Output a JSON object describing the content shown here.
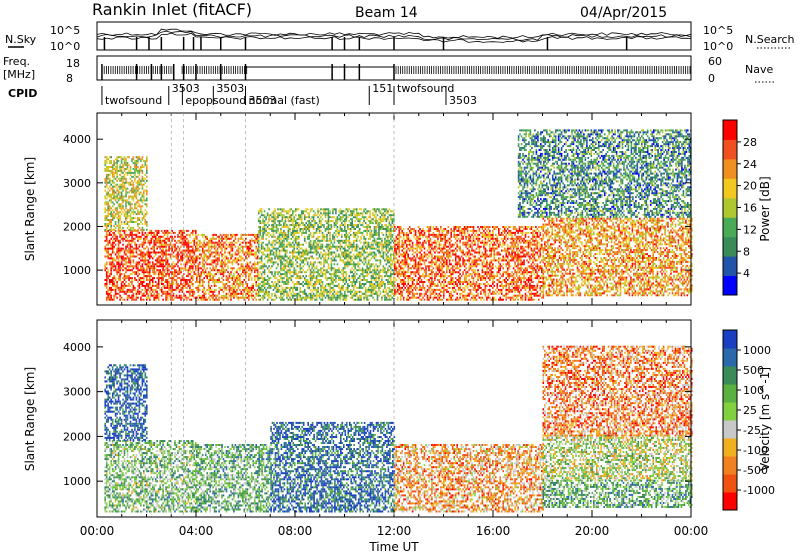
{
  "header": {
    "station": "Rankin Inlet (fitACF)",
    "beam": "Beam 14",
    "date": "04/Apr/2015"
  },
  "summary_labels": {
    "nsky": "N.Sky",
    "nsearch": "N.Search",
    "freq_line1": "Freq.",
    "freq_line2": "[MHz]",
    "nave": "Nave",
    "cpid": "CPID",
    "nsky_ticks": [
      "10^5",
      "10^0"
    ],
    "nsearch_ticks": [
      "10^5",
      "10^0"
    ],
    "freq_ticks": [
      "18",
      "8"
    ],
    "nave_ticks": [
      "60",
      "0"
    ]
  },
  "cpid_segments": [
    {
      "label": "twofsound",
      "start": 0.2,
      "end": 2.9
    },
    {
      "label": "3503",
      "start": 2.9,
      "end": 3.7
    },
    {
      "label": "epopsound",
      "start": 3.45,
      "end": 6.0
    },
    {
      "label": "3503",
      "start": 4.7,
      "end": 6.0
    },
    {
      "label": "normal (fast)",
      "start": 6.0,
      "end": 12.0
    },
    {
      "label": "151",
      "start": 11.0,
      "end": 12.0
    },
    {
      "label": "3503",
      "start": 6.0,
      "end": 8.0
    },
    {
      "label": "twofsound",
      "start": 12.0,
      "end": 24.0
    },
    {
      "label": "3503",
      "start": 14.1,
      "end": 24.0
    }
  ],
  "chart_data": [
    {
      "type": "heatmap",
      "ylabel": "Slant Range [km]",
      "xlabel": "",
      "xlim": [
        0,
        24
      ],
      "ylim": [
        200,
        4600
      ],
      "yticks": [
        1000,
        2000,
        3000,
        4000
      ],
      "colorbar": {
        "label": "Power [dB]",
        "ticks": [
          "4",
          "8",
          "12",
          "16",
          "20",
          "24",
          "28"
        ],
        "colors": [
          "#0000ff",
          "#2255aa",
          "#3a8a5a",
          "#4aaa55",
          "#b0c830",
          "#f0c820",
          "#f09020",
          "#f05020",
          "#ff0000"
        ]
      },
      "regions": [
        {
          "t0": 0.3,
          "t1": 4.0,
          "r0": 300,
          "r1": 1900,
          "level": 0.85
        },
        {
          "t0": 4.0,
          "t1": 6.5,
          "r0": 300,
          "r1": 1800,
          "level": 0.75
        },
        {
          "t0": 6.5,
          "t1": 12.0,
          "r0": 300,
          "r1": 2400,
          "level": 0.45
        },
        {
          "t0": 12.0,
          "t1": 18.0,
          "r0": 300,
          "r1": 2000,
          "level": 0.8
        },
        {
          "t0": 18.0,
          "t1": 24.0,
          "r0": 400,
          "r1": 2200,
          "level": 0.7
        },
        {
          "t0": 17.0,
          "t1": 24.0,
          "r0": 2200,
          "r1": 4200,
          "level": 0.3
        },
        {
          "t0": 0.3,
          "t1": 2.0,
          "r0": 1900,
          "r1": 3600,
          "level": 0.55
        }
      ]
    },
    {
      "type": "heatmap",
      "ylabel": "Slant Range [km]",
      "xlabel": "Time UT",
      "xlim": [
        0,
        24
      ],
      "ylim": [
        200,
        4600
      ],
      "xticks": [
        "00:00",
        "04:00",
        "08:00",
        "12:00",
        "16:00",
        "20:00",
        "00:00"
      ],
      "yticks": [
        1000,
        2000,
        3000,
        4000
      ],
      "colorbar": {
        "label": "Velocity [m s^-1]",
        "ticks": [
          "1000",
          "500",
          "100",
          "25",
          "-25",
          "-100",
          "-500",
          "-1000"
        ],
        "colors": [
          "#1a3fc0",
          "#2a6aaa",
          "#3a8a5a",
          "#5ab040",
          "#80d040",
          "#c8c8c8",
          "#f0b020",
          "#f08020",
          "#f05010",
          "#ff0000"
        ]
      },
      "regions": [
        {
          "t0": 0.3,
          "t1": 4.0,
          "r0": 300,
          "r1": 1900,
          "level": 0.4
        },
        {
          "t0": 4.0,
          "t1": 7.0,
          "r0": 300,
          "r1": 1800,
          "level": 0.35
        },
        {
          "t0": 7.0,
          "t1": 12.0,
          "r0": 300,
          "r1": 2300,
          "level": 0.15
        },
        {
          "t0": 12.0,
          "t1": 18.0,
          "r0": 300,
          "r1": 1800,
          "level": 0.7
        },
        {
          "t0": 18.0,
          "t1": 24.0,
          "r0": 1000,
          "r1": 2000,
          "level": 0.5
        },
        {
          "t0": 18.0,
          "t1": 24.0,
          "r0": 400,
          "r1": 1000,
          "level": 0.35
        },
        {
          "t0": 18.0,
          "t1": 24.0,
          "r0": 2000,
          "r1": 4000,
          "level": 0.75
        },
        {
          "t0": 0.3,
          "t1": 2.0,
          "r0": 1900,
          "r1": 3600,
          "level": 0.1
        }
      ]
    }
  ]
}
